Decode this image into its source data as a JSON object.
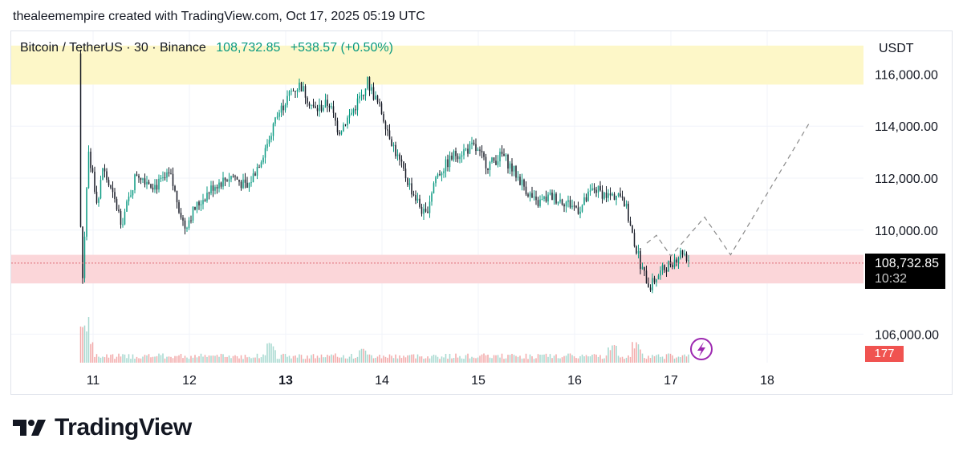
{
  "header": {
    "attribution": "thealeemempire created with TradingView.com, Oct 17, 2025 05:19 UTC"
  },
  "legend": {
    "symbol": "Bitcoin / TetherUS · 30 · Binance",
    "price": "108,732.85",
    "change": "+538.57 (+0.50%)"
  },
  "currency": "USDT",
  "price_label": {
    "price": "108,732.85",
    "countdown": "10:32"
  },
  "volume_label": "177",
  "logo": {
    "wordmark": "TradingView",
    "icon": "tradingview-logo-icon"
  },
  "colors": {
    "up": "#089981",
    "down": "#131722",
    "resistance_zone": "#fdf7c8",
    "support_zone": "#fbd6d9",
    "volume_up": "#a6d8cf",
    "volume_down": "#f2a9a9",
    "grid": "#f0f3fa",
    "projection": "#8a8a8a",
    "lightning": "#9c27b0"
  },
  "chart_data": {
    "type": "candlestick",
    "title": "Bitcoin / TetherUS · 30 · Binance",
    "x_ticks": [
      {
        "label": "11",
        "bold": false
      },
      {
        "label": "12",
        "bold": false
      },
      {
        "label": "13",
        "bold": true
      },
      {
        "label": "14",
        "bold": false
      },
      {
        "label": "15",
        "bold": false
      },
      {
        "label": "16",
        "bold": false
      },
      {
        "label": "17",
        "bold": false
      },
      {
        "label": "18",
        "bold": false
      }
    ],
    "x_range": [
      10.15,
      19.0
    ],
    "y_ticks": [
      {
        "value": 106000,
        "label": "106,000.00"
      },
      {
        "value": 110000,
        "label": "110,000.00"
      },
      {
        "value": 112000,
        "label": "112,000.00"
      },
      {
        "value": 114000,
        "label": "114,000.00"
      },
      {
        "value": 116000,
        "label": "116,000.00"
      }
    ],
    "y_range": [
      104900,
      117650
    ],
    "last_price": 108732.85,
    "zones": [
      {
        "name": "resistance",
        "low": 115600,
        "high": 117100
      },
      {
        "name": "support",
        "low": 107950,
        "high": 109050
      }
    ],
    "price_path": [
      [
        10.85,
        116800
      ],
      [
        10.88,
        107200
      ],
      [
        10.95,
        112900
      ],
      [
        11.05,
        111000
      ],
      [
        11.1,
        112400
      ],
      [
        11.3,
        110300
      ],
      [
        11.45,
        112200
      ],
      [
        11.65,
        111700
      ],
      [
        11.8,
        112100
      ],
      [
        11.95,
        110100
      ],
      [
        12.05,
        110800
      ],
      [
        12.25,
        111700
      ],
      [
        12.45,
        112100
      ],
      [
        12.6,
        111600
      ],
      [
        12.75,
        112800
      ],
      [
        12.9,
        114300
      ],
      [
        13.05,
        115300
      ],
      [
        13.15,
        115600
      ],
      [
        13.3,
        114600
      ],
      [
        13.45,
        114900
      ],
      [
        13.55,
        113800
      ],
      [
        13.7,
        114600
      ],
      [
        13.85,
        115700
      ],
      [
        14.0,
        114500
      ],
      [
        14.15,
        112900
      ],
      [
        14.3,
        111600
      ],
      [
        14.45,
        110500
      ],
      [
        14.55,
        112000
      ],
      [
        14.75,
        112900
      ],
      [
        14.95,
        113200
      ],
      [
        15.1,
        112500
      ],
      [
        15.25,
        112900
      ],
      [
        15.4,
        112100
      ],
      [
        15.6,
        111000
      ],
      [
        15.75,
        111300
      ],
      [
        15.9,
        111100
      ],
      [
        16.05,
        110800
      ],
      [
        16.2,
        111600
      ],
      [
        16.35,
        111300
      ],
      [
        16.5,
        111400
      ],
      [
        16.6,
        109800
      ],
      [
        16.7,
        108500
      ],
      [
        16.78,
        107800
      ],
      [
        16.85,
        108200
      ],
      [
        16.95,
        108600
      ],
      [
        17.05,
        108900
      ],
      [
        17.12,
        109200
      ],
      [
        17.2,
        108800
      ]
    ],
    "projection_path": [
      [
        16.75,
        109500
      ],
      [
        16.85,
        109800
      ],
      [
        17.0,
        109000
      ],
      [
        17.35,
        110500
      ],
      [
        17.62,
        109050
      ],
      [
        18.45,
        114200
      ]
    ],
    "volume_spikes": [
      [
        10.92,
        1.0
      ],
      [
        10.96,
        0.6
      ],
      [
        12.85,
        0.45
      ],
      [
        13.8,
        0.3
      ],
      [
        16.4,
        0.4
      ],
      [
        16.65,
        0.45
      ]
    ]
  }
}
